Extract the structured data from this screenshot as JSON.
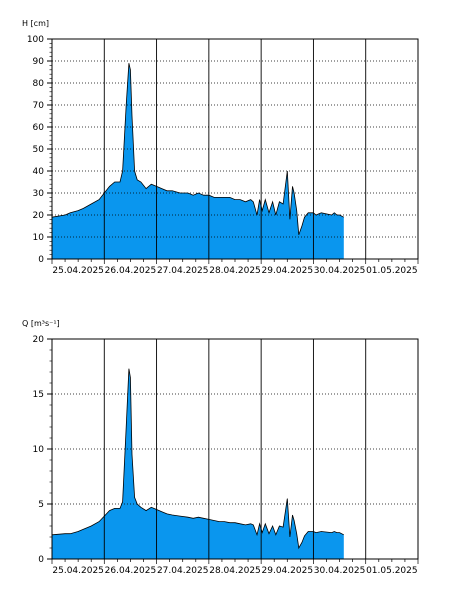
{
  "chart_data": [
    {
      "type": "area",
      "ylabel": "H [cm]",
      "ylim": [
        0,
        100
      ],
      "yticks": [
        0,
        10,
        20,
        30,
        40,
        50,
        60,
        70,
        80,
        90,
        100
      ],
      "y_tick_labels": [
        "0",
        "10",
        "20",
        "30",
        "40",
        "50",
        "60",
        "70",
        "80",
        "90",
        "100"
      ],
      "x_tick_labels": [
        "25.04.2025",
        "26.04.2025",
        "27.04.2025",
        "28.04.2025",
        "29.04.2025",
        "30.04.2025",
        "01.05.2025"
      ],
      "grid": "horizontal dotted, vertical solid at midnight",
      "fill_color": "#0A96EE",
      "line_color": "#000000",
      "x_unit": "days since 25.04.2025 00:00",
      "series": [
        {
          "x": [
            0.0,
            0.25,
            0.35,
            0.5,
            0.6,
            0.75,
            0.9,
            1.0,
            1.1,
            1.2,
            1.3,
            1.35,
            1.42,
            1.47,
            1.5,
            1.53,
            1.58,
            1.63,
            1.7,
            1.8,
            1.9,
            2.0,
            2.1,
            2.2,
            2.3,
            2.45,
            2.6,
            2.7,
            2.8,
            2.9,
            3.0,
            3.1,
            3.2,
            3.3,
            3.4,
            3.5,
            3.6,
            3.7,
            3.8,
            3.85,
            3.92,
            3.97,
            4.02,
            4.08,
            4.15,
            4.22,
            4.28,
            4.35,
            4.42,
            4.5,
            4.55,
            4.6,
            4.63,
            4.68,
            4.72,
            4.78,
            4.83,
            4.9,
            5.0,
            5.05,
            5.15,
            5.35,
            5.4,
            5.45,
            5.5,
            5.58
          ],
          "values": [
            19,
            20,
            21,
            22,
            23,
            25,
            27,
            30,
            33,
            35,
            35,
            40,
            70,
            89,
            86,
            65,
            40,
            36,
            35,
            32,
            34,
            33,
            32,
            31,
            31,
            30,
            30,
            29,
            30,
            29,
            29,
            28,
            28,
            28,
            28,
            27,
            27,
            26,
            27,
            26,
            20,
            27,
            22,
            27,
            21,
            26,
            20,
            26,
            25,
            40,
            18,
            33,
            30,
            22,
            11,
            15,
            19,
            21,
            21,
            20,
            21,
            20,
            21,
            20,
            20,
            19
          ]
        }
      ]
    },
    {
      "type": "area",
      "ylabel": "Q [m³s⁻¹]",
      "ylim": [
        0,
        20
      ],
      "yticks": [
        0,
        5,
        10,
        15,
        20
      ],
      "y_tick_labels": [
        "0",
        "5",
        "10",
        "15",
        "20"
      ],
      "x_tick_labels": [
        "25.04.2025",
        "26.04.2025",
        "27.04.2025",
        "28.04.2025",
        "29.04.2025",
        "30.04.2025",
        "01.05.2025"
      ],
      "grid": "horizontal dotted, vertical solid at midnight",
      "fill_color": "#0A96EE",
      "line_color": "#000000",
      "x_unit": "days since 25.04.2025 00:00",
      "series": [
        {
          "x": [
            0.0,
            0.25,
            0.35,
            0.5,
            0.6,
            0.75,
            0.9,
            1.0,
            1.1,
            1.2,
            1.3,
            1.35,
            1.42,
            1.47,
            1.5,
            1.53,
            1.58,
            1.63,
            1.7,
            1.8,
            1.9,
            2.0,
            2.1,
            2.2,
            2.3,
            2.45,
            2.6,
            2.7,
            2.8,
            2.9,
            3.0,
            3.1,
            3.2,
            3.3,
            3.4,
            3.5,
            3.6,
            3.7,
            3.8,
            3.85,
            3.92,
            3.97,
            4.02,
            4.08,
            4.15,
            4.22,
            4.28,
            4.35,
            4.42,
            4.5,
            4.55,
            4.6,
            4.63,
            4.68,
            4.72,
            4.78,
            4.83,
            4.9,
            5.0,
            5.05,
            5.15,
            5.35,
            5.4,
            5.45,
            5.5,
            5.58
          ],
          "values": [
            2.2,
            2.3,
            2.3,
            2.5,
            2.7,
            3.0,
            3.4,
            3.9,
            4.4,
            4.6,
            4.6,
            5.2,
            12.0,
            17.3,
            16.5,
            9.5,
            5.6,
            5.0,
            4.7,
            4.4,
            4.7,
            4.5,
            4.3,
            4.1,
            4.0,
            3.9,
            3.8,
            3.7,
            3.8,
            3.7,
            3.6,
            3.5,
            3.4,
            3.4,
            3.3,
            3.3,
            3.2,
            3.1,
            3.2,
            3.1,
            2.2,
            3.2,
            2.4,
            3.2,
            2.3,
            3.0,
            2.2,
            3.0,
            2.9,
            5.5,
            2.0,
            4.0,
            3.5,
            2.3,
            1.0,
            1.5,
            2.1,
            2.5,
            2.5,
            2.4,
            2.5,
            2.4,
            2.5,
            2.4,
            2.4,
            2.2
          ]
        }
      ]
    }
  ]
}
